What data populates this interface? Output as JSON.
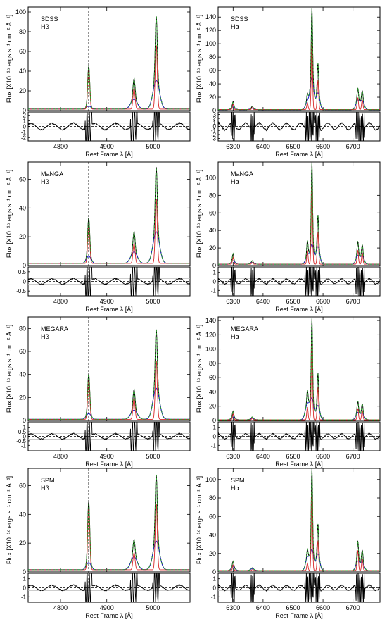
{
  "figure": {
    "ylabel_main": "Flux [X10⁻¹⁶ ergs s⁻¹ cm⁻² Å⁻¹]",
    "xlabel": "Rest Frame λ [Å]",
    "series_colors": {
      "data": "#000000",
      "total_fit": "#2ca02c",
      "narrow": "#d62728",
      "broad": "#1f1fd0",
      "outflow": "#9400d3",
      "residual_zero": "#000000"
    }
  },
  "chart_data": [
    {
      "type": "line",
      "survey": "SDSS",
      "line": "Hβ",
      "label1": "SDSS",
      "label2": "Hβ",
      "xlim": [
        4730,
        5080
      ],
      "ylim": [
        0,
        105
      ],
      "xticks": [
        4800,
        4900,
        5000
      ],
      "yticks": [
        0,
        20,
        40,
        60,
        80,
        100
      ],
      "res_ylim": [
        -2.6,
        2.6
      ],
      "res_yticks": [
        -2,
        -1,
        0,
        1,
        2
      ],
      "ref_line": 4861,
      "lines": [
        {
          "center": 4861,
          "amp": 44,
          "broad": 3,
          "bw": 5
        },
        {
          "center": 4959,
          "amp": 31,
          "broad": 10,
          "bw": 7
        },
        {
          "center": 5007,
          "amp": 94,
          "broad": 29,
          "bw": 7
        }
      ],
      "continuum": 1.5
    },
    {
      "type": "line",
      "survey": "SDSS",
      "line": "Hα",
      "label1": "SDSS",
      "label2": "Hα",
      "xlim": [
        6250,
        6790
      ],
      "ylim": [
        0,
        155
      ],
      "xticks": [
        6300,
        6400,
        6500,
        6600,
        6700
      ],
      "yticks": [
        0,
        20,
        40,
        60,
        80,
        100,
        120,
        140
      ],
      "res_ylim": [
        -3.6,
        3.6
      ],
      "res_yticks": [
        -3,
        -2,
        -1,
        0,
        1,
        2,
        3
      ],
      "lines": [
        {
          "center": 6300,
          "amp": 12,
          "broad": 4,
          "bw": 6
        },
        {
          "center": 6364,
          "amp": 5,
          "broad": 2,
          "bw": 6
        },
        {
          "center": 6548,
          "amp": 22,
          "broad": 12,
          "bw": 6
        },
        {
          "center": 6563,
          "amp": 152,
          "broad": 47,
          "bw": 6
        },
        {
          "center": 6583,
          "amp": 70,
          "broad": 25,
          "bw": 6
        },
        {
          "center": 6716,
          "amp": 32,
          "broad": 14,
          "bw": 6
        },
        {
          "center": 6731,
          "amp": 28,
          "broad": 13,
          "bw": 6
        }
      ],
      "continuum": 1.5
    },
    {
      "type": "line",
      "survey": "MaNGA",
      "line": "Hβ",
      "label1": "MaNGA",
      "label2": "Hβ",
      "xlim": [
        4730,
        5080
      ],
      "ylim": [
        0,
        72
      ],
      "xticks": [
        4800,
        4900,
        5000
      ],
      "yticks": [
        0,
        20,
        40,
        60
      ],
      "res_ylim": [
        -0.75,
        0.75
      ],
      "res_yticks": [
        -0.5,
        0.0,
        0.5
      ],
      "ref_line": 4861,
      "lines": [
        {
          "center": 4861,
          "amp": 32,
          "broad": 5,
          "bw": 5
        },
        {
          "center": 4959,
          "amp": 22,
          "broad": 8,
          "bw": 7
        },
        {
          "center": 5007,
          "amp": 67,
          "broad": 22,
          "bw": 7
        }
      ],
      "continuum": 1.5
    },
    {
      "type": "line",
      "survey": "MaNGA",
      "line": "Hα",
      "label1": "MaNGA",
      "label2": "Hα",
      "xlim": [
        6250,
        6790
      ],
      "ylim": [
        0,
        118
      ],
      "xticks": [
        6300,
        6400,
        6500,
        6600,
        6700
      ],
      "yticks": [
        0,
        20,
        40,
        60,
        80,
        100
      ],
      "res_ylim": [
        -1.6,
        1.6
      ],
      "res_yticks": [
        -1,
        0,
        1
      ],
      "lines": [
        {
          "center": 6300,
          "amp": 12,
          "broad": 4,
          "bw": 6
        },
        {
          "center": 6364,
          "amp": 4,
          "broad": 2,
          "bw": 6
        },
        {
          "center": 6548,
          "amp": 26,
          "broad": 10,
          "bw": 6
        },
        {
          "center": 6563,
          "amp": 116,
          "broad": 22,
          "bw": 6
        },
        {
          "center": 6583,
          "amp": 57,
          "broad": 20,
          "bw": 6
        },
        {
          "center": 6716,
          "amp": 26,
          "broad": 10,
          "bw": 6
        },
        {
          "center": 6731,
          "amp": 22,
          "broad": 9,
          "bw": 6
        }
      ],
      "continuum": 1.5
    },
    {
      "type": "line",
      "survey": "MEGARA",
      "line": "Hβ",
      "label1": "MEGARA",
      "label2": "Hβ",
      "xlim": [
        4730,
        5080
      ],
      "ylim": [
        0,
        90
      ],
      "xticks": [
        4800,
        4900,
        5000
      ],
      "yticks": [
        0,
        20,
        40,
        60,
        80
      ],
      "res_ylim": [
        -1.6,
        1.6
      ],
      "res_yticks": [
        -1.0,
        -0.5,
        0.0,
        0.5,
        1.0
      ],
      "ref_line": 4861,
      "lines": [
        {
          "center": 4861,
          "amp": 40,
          "broad": 5,
          "bw": 5
        },
        {
          "center": 4959,
          "amp": 26,
          "broad": 8,
          "bw": 7
        },
        {
          "center": 5007,
          "amp": 78,
          "broad": 27,
          "bw": 7
        }
      ],
      "continuum": 1.0
    },
    {
      "type": "line",
      "survey": "MEGARA",
      "line": "Hα",
      "label1": "MEGARA",
      "label2": "Hα",
      "xlim": [
        6250,
        6790
      ],
      "ylim": [
        0,
        145
      ],
      "xticks": [
        6300,
        6400,
        6500,
        6600,
        6700
      ],
      "yticks": [
        0,
        20,
        40,
        60,
        80,
        100,
        120,
        140
      ],
      "res_ylim": [
        -1.6,
        1.6
      ],
      "res_yticks": [
        -1,
        0,
        1
      ],
      "lines": [
        {
          "center": 6300,
          "amp": 12,
          "broad": 4,
          "bw": 6
        },
        {
          "center": 6364,
          "amp": 4,
          "broad": 2,
          "bw": 6
        },
        {
          "center": 6548,
          "amp": 40,
          "broad": 22,
          "bw": 7
        },
        {
          "center": 6563,
          "amp": 140,
          "broad": 28,
          "bw": 6
        },
        {
          "center": 6583,
          "amp": 66,
          "broad": 20,
          "bw": 6
        },
        {
          "center": 6716,
          "amp": 26,
          "broad": 10,
          "bw": 6
        },
        {
          "center": 6731,
          "amp": 22,
          "broad": 9,
          "bw": 6
        }
      ],
      "continuum": 1.0
    },
    {
      "type": "line",
      "survey": "SPM",
      "line": "Hβ",
      "label1": "SPM",
      "label2": "Hβ",
      "xlim": [
        4730,
        5080
      ],
      "ylim": [
        0,
        72
      ],
      "xticks": [
        4800,
        4900,
        5000
      ],
      "yticks": [
        0,
        20,
        40,
        60
      ],
      "res_ylim": [
        -1.6,
        1.6
      ],
      "res_yticks": [
        -1,
        0,
        1
      ],
      "ref_line": 4861,
      "lines": [
        {
          "center": 4861,
          "amp": 48,
          "broad": 5,
          "bw": 5
        },
        {
          "center": 4959,
          "amp": 21,
          "broad": 9,
          "bw": 7
        },
        {
          "center": 5007,
          "amp": 66,
          "broad": 20,
          "bw": 7
        }
      ],
      "continuum": 1.5
    },
    {
      "type": "line",
      "survey": "SPM",
      "line": "Hα",
      "label1": "SPM",
      "label2": "Hα",
      "xlim": [
        6250,
        6790
      ],
      "ylim": [
        0,
        112
      ],
      "xticks": [
        6300,
        6400,
        6500,
        6600,
        6700
      ],
      "yticks": [
        0,
        20,
        40,
        60,
        80,
        100
      ],
      "res_ylim": [
        -1.6,
        1.6
      ],
      "res_yticks": [
        -1,
        0,
        1
      ],
      "lines": [
        {
          "center": 6300,
          "amp": 10,
          "broad": 4,
          "bw": 6
        },
        {
          "center": 6364,
          "amp": 3,
          "broad": 2,
          "bw": 6
        },
        {
          "center": 6548,
          "amp": 22,
          "broad": 14,
          "bw": 6
        },
        {
          "center": 6563,
          "amp": 110,
          "broad": 22,
          "bw": 6
        },
        {
          "center": 6583,
          "amp": 51,
          "broad": 18,
          "bw": 6
        },
        {
          "center": 6716,
          "amp": 32,
          "broad": 10,
          "bw": 6
        },
        {
          "center": 6731,
          "amp": 22,
          "broad": 9,
          "bw": 6
        }
      ],
      "continuum": 1.5
    }
  ]
}
